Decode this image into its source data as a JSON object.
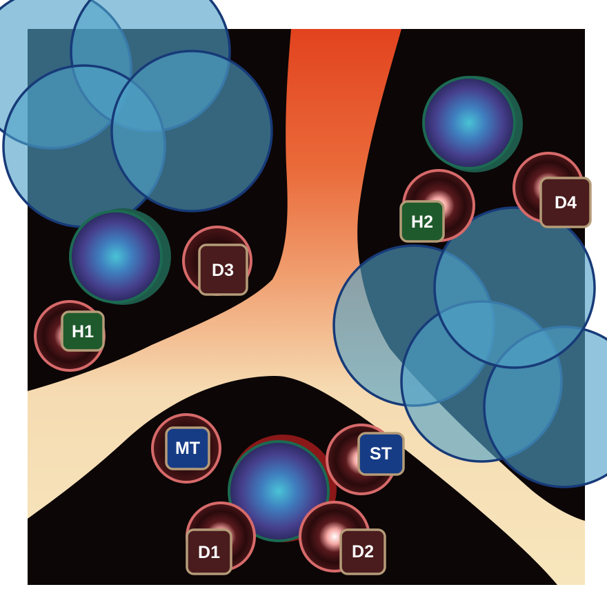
{
  "badges": {
    "h1": "H1",
    "h2": "H2",
    "d1": "D1",
    "d2": "D2",
    "d3": "D3",
    "d4": "D4",
    "mt": "MT",
    "st": "ST"
  },
  "colors": {
    "background": "#0c0606",
    "tissue_top": "#e44a22",
    "tissue_bottom": "#f6e3b4",
    "cluster_fill": "#4fa2c8",
    "cluster_outline": "#173a78",
    "center_cell": "#45509c",
    "satellite_ring": "#d76a6a",
    "badge_green": "#1f5a2c",
    "badge_maroon": "#4a1c1e",
    "badge_blue": "#173c86",
    "badge_border": "#b59b78"
  }
}
